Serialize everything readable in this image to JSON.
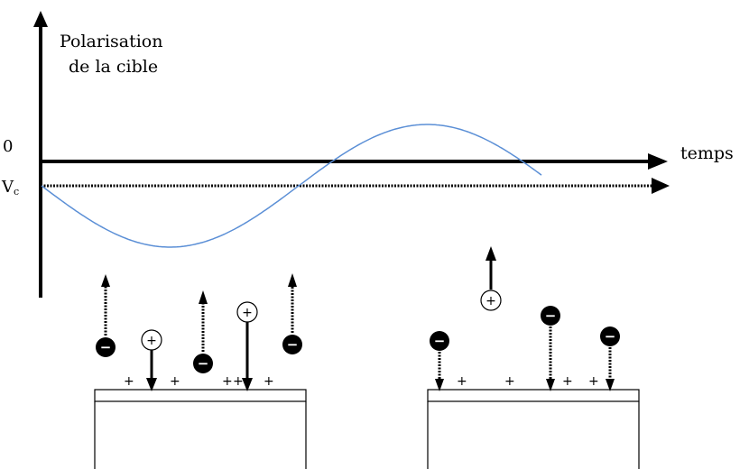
{
  "labels": {
    "y_axis_line1": "Polarisation",
    "y_axis_line2": "de la cible",
    "x_axis": "temps",
    "zero": "0",
    "vc_main": "V",
    "vc_sub": "c"
  },
  "symbols": {
    "plus": "+",
    "minus": "−"
  },
  "colors": {
    "axis": "#000000",
    "curve": "#5b8fd6",
    "background": "#ffffff"
  },
  "left_target": {
    "surface_charges": [
      "+",
      "+",
      "+",
      "+",
      "+"
    ],
    "particles": [
      {
        "type": "electron",
        "direction": "up"
      },
      {
        "type": "ion",
        "direction": "down"
      },
      {
        "type": "electron",
        "direction": "up"
      },
      {
        "type": "ion",
        "direction": "down"
      },
      {
        "type": "electron",
        "direction": "up"
      }
    ]
  },
  "right_target": {
    "surface_charges": [
      "+",
      "+",
      "+",
      "+"
    ],
    "particles": [
      {
        "type": "electron",
        "direction": "down"
      },
      {
        "type": "ion",
        "direction": "up"
      },
      {
        "type": "electron",
        "direction": "down"
      },
      {
        "type": "electron",
        "direction": "down"
      }
    ]
  }
}
